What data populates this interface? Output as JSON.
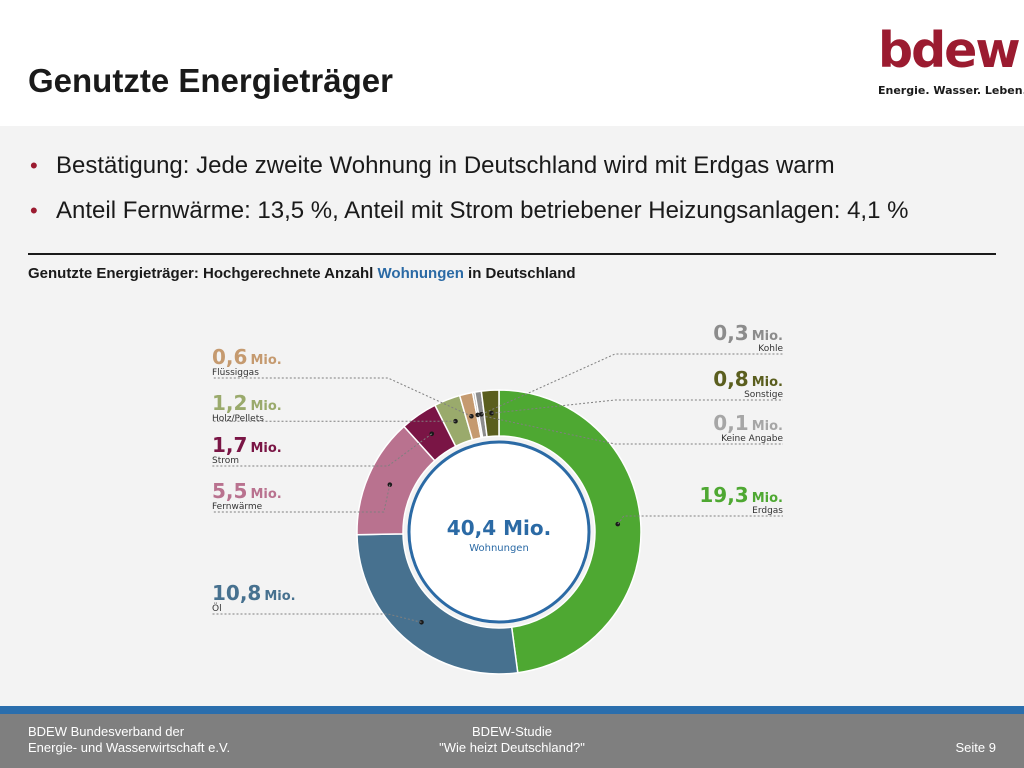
{
  "header": {
    "title": "Genutzte Energieträger",
    "logo_word": "bdew",
    "logo_tagline": "Energie. Wasser. Leben."
  },
  "bullets": [
    "Bestätigung: Jede zweite Wohnung in Deutschland wird mit Erdgas warm",
    "Anteil Fernwärme: 13,5 %, Anteil mit Strom betriebener Heizungsanlagen: 4,1 %"
  ],
  "subtitle": {
    "part1": "Genutzte Energieträger: Hochgerechnete Anzahl ",
    "highlight": "Wohnungen",
    "part2": " in Deutschland"
  },
  "colors": {
    "brand": "#9b1b30",
    "footer_band": "#2a6ead",
    "footer": "#7f7f7f",
    "highlight": "#2b6aa5"
  },
  "chart_data": {
    "type": "pie",
    "style": "donut",
    "center": {
      "value": "40,4 Mio.",
      "label": "Wohnungen"
    },
    "unit": "Mio.",
    "slices": [
      {
        "name": "Erdgas",
        "value": 19.3,
        "display": "19,3",
        "color": "#4ea832",
        "side": "right"
      },
      {
        "name": "Öl",
        "value": 10.8,
        "display": "10,8",
        "color": "#47718f",
        "side": "left"
      },
      {
        "name": "Fernwärme",
        "value": 5.5,
        "display": "5,5",
        "color": "#b9728f",
        "side": "left"
      },
      {
        "name": "Strom",
        "value": 1.7,
        "display": "1,7",
        "color": "#7a1545",
        "side": "left"
      },
      {
        "name": "Holz/Pellets",
        "value": 1.2,
        "display": "1,2",
        "color": "#9aaa6c",
        "side": "left"
      },
      {
        "name": "Flüssiggas",
        "value": 0.6,
        "display": "0,6",
        "color": "#c59a6f",
        "side": "left"
      },
      {
        "name": "Keine Angabe",
        "value": 0.1,
        "display": "0,1",
        "color": "#a6a6a6",
        "side": "right"
      },
      {
        "name": "Kohle",
        "value": 0.3,
        "display": "0,3",
        "color": "#8c8c8c",
        "side": "right"
      },
      {
        "name": "Sonstige",
        "value": 0.8,
        "display": "0,8",
        "color": "#5a5e1e",
        "side": "right"
      }
    ]
  },
  "footer": {
    "org_line1": "BDEW Bundesverband der",
    "org_line2": "Energie- und Wasserwirtschaft e.V.",
    "study_line1": "BDEW-Studie",
    "study_line2": "\"Wie heizt Deutschland?\"",
    "page": "Seite 9"
  }
}
